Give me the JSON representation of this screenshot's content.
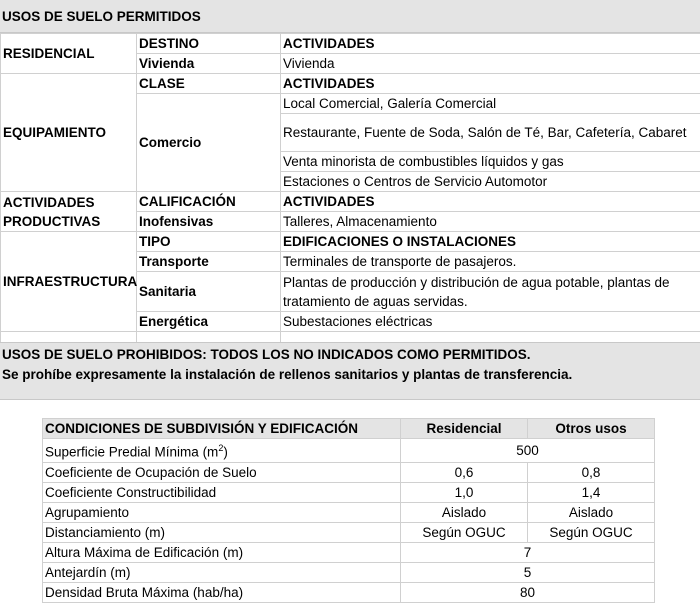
{
  "permitted": {
    "title": "USOS DE SUELO PERMITIDOS",
    "residencial": {
      "label": "RESIDENCIAL",
      "col2_header": "DESTINO",
      "col3_header": "ACTIVIDADES",
      "rows": [
        {
          "c2": "Vivienda",
          "c3": "Vivienda"
        }
      ]
    },
    "equipamiento": {
      "label": "EQUIPAMIENTO",
      "col2_header": "CLASE",
      "col3_header": "ACTIVIDADES",
      "class": "Comercio",
      "activities": [
        "Local Comercial, Galería Comercial",
        "Restaurante, Fuente de Soda, Salón de Té, Bar, Cafetería, Cabaret",
        "Venta minorista de combustibles líquidos y gas",
        "Estaciones o Centros de Servicio Automotor"
      ]
    },
    "productivas": {
      "label": "ACTIVIDADES PRODUCTIVAS",
      "col2_header": "CALIFICACIÓN",
      "col3_header": "ACTIVIDADES",
      "rows": [
        {
          "c2": "Inofensivas",
          "c3": "Talleres, Almacenamiento"
        }
      ]
    },
    "infraestructura": {
      "label": "INFRAESTRUCTURA",
      "col2_header": "TIPO",
      "col3_header": "EDIFICACIONES O INSTALACIONES",
      "rows": [
        {
          "c2": "Transporte",
          "c3": "Terminales de transporte de pasajeros."
        },
        {
          "c2": "Sanitaria",
          "c3": "Plantas de producción y distribución de agua potable, plantas de tratamiento de aguas servidas."
        },
        {
          "c2": "Energética",
          "c3": "Subestaciones eléctricas"
        }
      ]
    }
  },
  "prohibited": {
    "line1": "USOS DE SUELO PROHIBIDOS: TODOS LOS NO INDICADOS COMO PERMITIDOS.",
    "line2": "Se prohíbe expresamente la instalación de rellenos sanitarios y plantas de transferencia."
  },
  "conditions": {
    "headers": [
      "CONDICIONES DE SUBDIVISIÓN Y EDIFICACIÓN",
      "Residencial",
      "Otros usos"
    ],
    "rows": [
      {
        "label": "Superficie Predial Mínima (m²)",
        "value": "500"
      },
      {
        "label": "Coeficiente de Ocupación de Suelo",
        "res": "0,6",
        "otros": "0,8"
      },
      {
        "label": "Coeficiente Constructibilidad",
        "res": "1,0",
        "otros": "1,4"
      },
      {
        "label": "Agrupamiento",
        "res": "Aislado",
        "otros": "Aislado"
      },
      {
        "label": "Distanciamiento (m)",
        "res": "Según OGUC",
        "otros": "Según OGUC"
      },
      {
        "label": "Altura Máxima de Edificación (m)",
        "value": "7"
      },
      {
        "label": "Antejardín (m)",
        "value": "5"
      },
      {
        "label": "Densidad Bruta Máxima (hab/ha)",
        "value": "80"
      }
    ]
  }
}
